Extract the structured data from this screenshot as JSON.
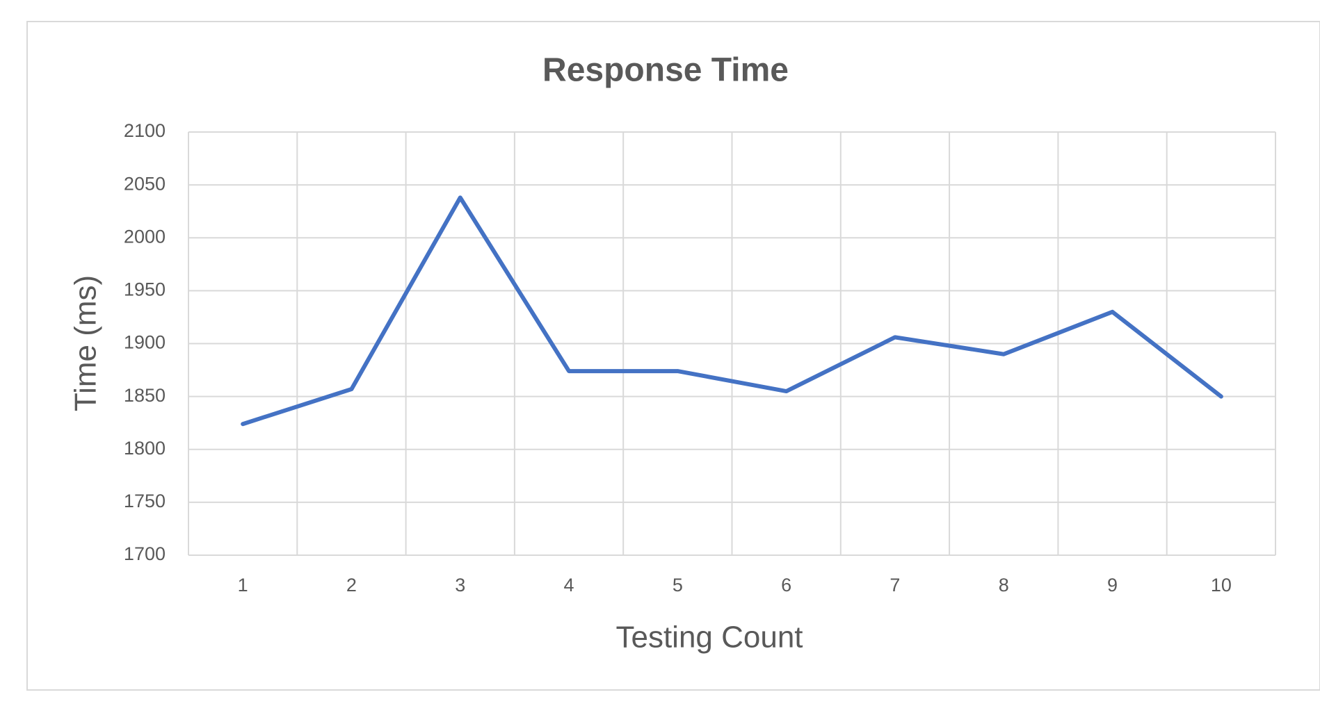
{
  "chart_data": {
    "type": "line",
    "title": "Response Time",
    "x_label": "Testing Count",
    "y_label": "Time (ms)",
    "categories": [
      "1",
      "2",
      "3",
      "4",
      "5",
      "6",
      "7",
      "8",
      "9",
      "10"
    ],
    "values": [
      1824,
      1857,
      2038,
      1874,
      1874,
      1855,
      1906,
      1890,
      1930,
      1850
    ],
    "color": "#4472c4",
    "ylim": [
      1700,
      2100
    ],
    "yticks": [
      1700,
      1750,
      1800,
      1850,
      1900,
      1950,
      2000,
      2050,
      2100
    ],
    "grid": true
  }
}
